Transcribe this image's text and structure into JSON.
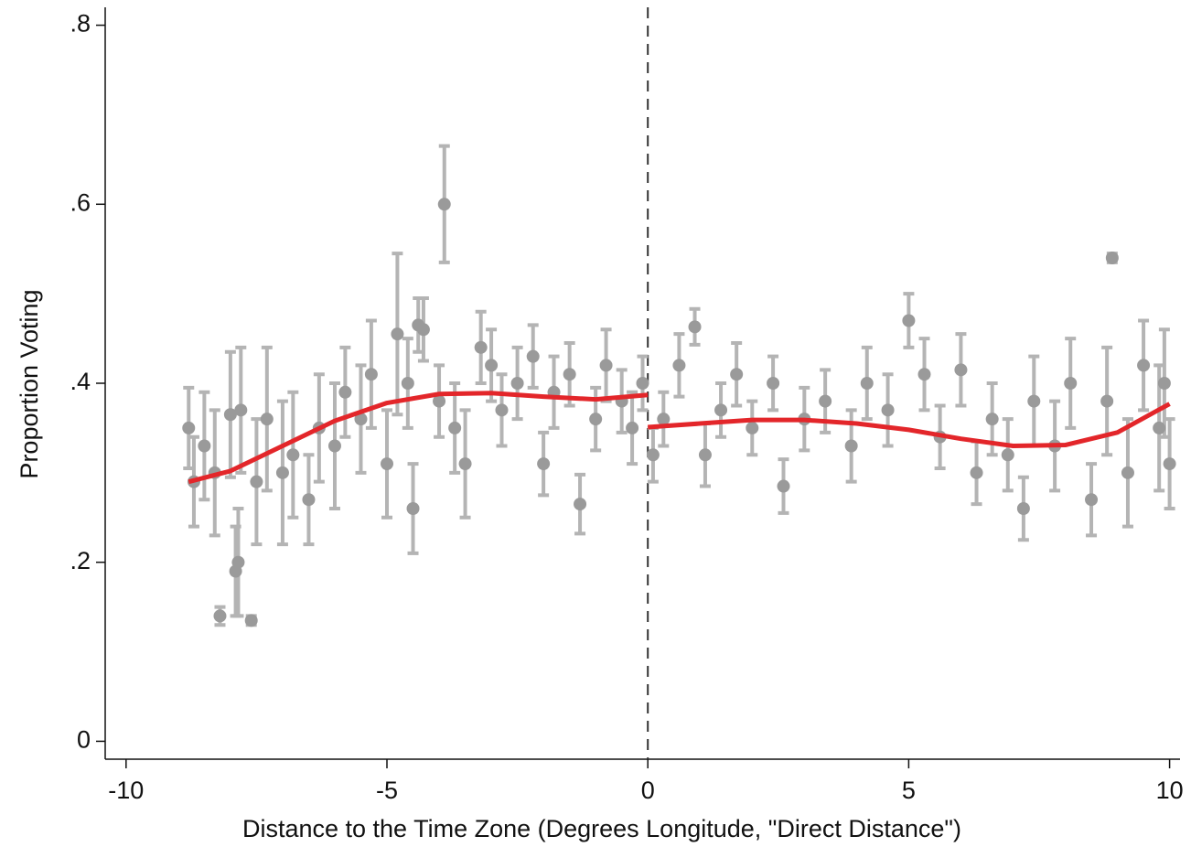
{
  "chart_data": {
    "type": "scatter",
    "x_label": "Distance to the Time Zone (Degrees Longitude, \"Direct Distance\")",
    "y_label": "Proportion Voting",
    "xlim": [
      -10.4,
      10.2
    ],
    "ylim": [
      -0.02,
      0.82
    ],
    "xticks": [
      -10,
      -5,
      0,
      5,
      10
    ],
    "yticks": [
      0,
      {
        "value": 0.2,
        "label": ".2"
      },
      {
        "value": 0.4,
        "label": ".4"
      },
      {
        "value": 0.6,
        "label": ".6"
      },
      {
        "value": 0.8,
        "label": ".8"
      }
    ],
    "cutoff_x": 0,
    "point_color": "#9a9a9a",
    "error_color": "#b4b4b4",
    "points": {
      "x": [
        -8.8,
        -8.7,
        -8.5,
        -8.3,
        -8.2,
        -8.0,
        -7.9,
        -7.85,
        -7.8,
        -7.6,
        -7.5,
        -7.3,
        -7.0,
        -6.8,
        -6.5,
        -6.3,
        -6.0,
        -5.8,
        -5.5,
        -5.3,
        -5.0,
        -4.8,
        -4.6,
        -4.5,
        -4.4,
        -4.3,
        -4.0,
        -3.9,
        -3.7,
        -3.5,
        -3.2,
        -3.0,
        -2.8,
        -2.5,
        -2.2,
        -2.0,
        -1.8,
        -1.5,
        -1.3,
        -1.0,
        -0.8,
        -0.5,
        -0.3,
        -0.1,
        0.1,
        0.3,
        0.6,
        0.9,
        1.1,
        1.4,
        1.7,
        2.0,
        2.4,
        2.6,
        3.0,
        3.4,
        3.9,
        4.2,
        4.6,
        5.0,
        5.3,
        5.6,
        6.0,
        6.3,
        6.6,
        6.9,
        7.2,
        7.4,
        7.8,
        8.1,
        8.5,
        8.8,
        8.9,
        9.2,
        9.5,
        9.8,
        9.9,
        10.0
      ],
      "y": [
        0.35,
        0.29,
        0.33,
        0.3,
        0.14,
        0.365,
        0.19,
        0.2,
        0.37,
        0.135,
        0.29,
        0.36,
        0.3,
        0.32,
        0.27,
        0.35,
        0.33,
        0.39,
        0.36,
        0.41,
        0.31,
        0.455,
        0.4,
        0.26,
        0.465,
        0.46,
        0.38,
        0.6,
        0.35,
        0.31,
        0.44,
        0.42,
        0.37,
        0.4,
        0.43,
        0.31,
        0.39,
        0.41,
        0.265,
        0.36,
        0.42,
        0.38,
        0.35,
        0.4,
        0.32,
        0.36,
        0.42,
        0.463,
        0.32,
        0.37,
        0.41,
        0.35,
        0.4,
        0.285,
        0.36,
        0.38,
        0.33,
        0.4,
        0.37,
        0.47,
        0.41,
        0.34,
        0.415,
        0.3,
        0.36,
        0.32,
        0.26,
        0.38,
        0.33,
        0.4,
        0.27,
        0.38,
        0.54,
        0.3,
        0.42,
        0.35,
        0.4,
        0.31
      ],
      "err": [
        0.045,
        0.05,
        0.06,
        0.07,
        0.01,
        0.07,
        0.05,
        0.06,
        0.07,
        0.005,
        0.07,
        0.08,
        0.08,
        0.07,
        0.05,
        0.06,
        0.07,
        0.05,
        0.06,
        0.06,
        0.06,
        0.09,
        0.05,
        0.05,
        0.03,
        0.035,
        0.04,
        0.065,
        0.05,
        0.06,
        0.04,
        0.04,
        0.04,
        0.04,
        0.035,
        0.035,
        0.04,
        0.035,
        0.033,
        0.035,
        0.04,
        0.035,
        0.04,
        0.03,
        0.03,
        0.03,
        0.035,
        0.02,
        0.035,
        0.03,
        0.035,
        0.03,
        0.03,
        0.03,
        0.035,
        0.035,
        0.04,
        0.04,
        0.04,
        0.03,
        0.04,
        0.035,
        0.04,
        0.035,
        0.04,
        0.04,
        0.035,
        0.05,
        0.05,
        0.05,
        0.04,
        0.06,
        0.005,
        0.06,
        0.05,
        0.07,
        0.06,
        0.05
      ]
    },
    "fit_color": "#e3262a",
    "fits": [
      {
        "x": [
          -8.8,
          -8,
          -7,
          -6,
          -5,
          -4,
          -3,
          -2,
          -1,
          0
        ],
        "y": [
          0.29,
          0.302,
          0.33,
          0.358,
          0.378,
          0.388,
          0.389,
          0.385,
          0.382,
          0.387
        ]
      },
      {
        "x": [
          0,
          1,
          2,
          3,
          4,
          5,
          6,
          7,
          8,
          9,
          10
        ],
        "y": [
          0.351,
          0.355,
          0.359,
          0.359,
          0.355,
          0.348,
          0.338,
          0.33,
          0.331,
          0.345,
          0.377
        ]
      }
    ]
  }
}
